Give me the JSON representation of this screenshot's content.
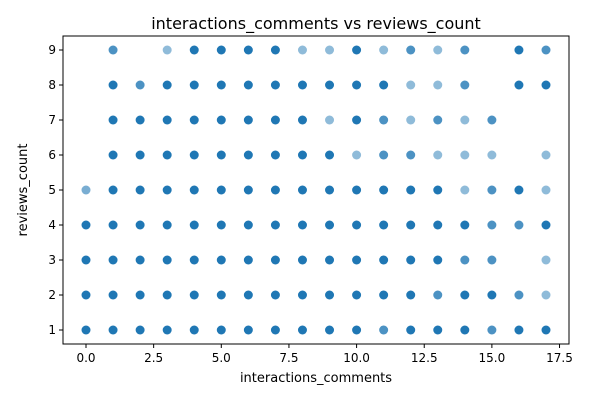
{
  "chart_data": {
    "type": "scatter",
    "title": "interactions_comments vs reviews_count",
    "xlabel": "interactions_comments",
    "ylabel": "reviews_count",
    "xlim": [
      -0.85,
      17.85
    ],
    "ylim": [
      0.6,
      9.4
    ],
    "xticks": [
      0.0,
      2.5,
      5.0,
      7.5,
      10.0,
      12.5,
      15.0,
      17.5
    ],
    "xtick_labels": [
      "0.0",
      "2.5",
      "5.0",
      "7.5",
      "10.0",
      "12.5",
      "15.0",
      "17.5"
    ],
    "yticks": [
      1,
      2,
      3,
      4,
      5,
      6,
      7,
      8,
      9
    ],
    "ytick_labels": [
      "1",
      "2",
      "3",
      "4",
      "5",
      "6",
      "7",
      "8",
      "9"
    ],
    "grid": false,
    "legend": "none",
    "marker_color": "#1f77b4",
    "points": [
      {
        "x": 0,
        "y": 1
      },
      {
        "x": 0,
        "y": 2
      },
      {
        "x": 0,
        "y": 3
      },
      {
        "x": 0,
        "y": 4
      },
      {
        "x": 0,
        "y": 5,
        "a": 0.6
      },
      {
        "x": 1,
        "y": 1
      },
      {
        "x": 1,
        "y": 2
      },
      {
        "x": 1,
        "y": 3
      },
      {
        "x": 1,
        "y": 4
      },
      {
        "x": 1,
        "y": 5
      },
      {
        "x": 1,
        "y": 6
      },
      {
        "x": 1,
        "y": 7
      },
      {
        "x": 1,
        "y": 8
      },
      {
        "x": 1,
        "y": 9,
        "a": 0.8
      },
      {
        "x": 2,
        "y": 1
      },
      {
        "x": 2,
        "y": 2
      },
      {
        "x": 2,
        "y": 3
      },
      {
        "x": 2,
        "y": 4
      },
      {
        "x": 2,
        "y": 5
      },
      {
        "x": 2,
        "y": 6
      },
      {
        "x": 2,
        "y": 7
      },
      {
        "x": 2,
        "y": 8,
        "a": 0.8
      },
      {
        "x": 3,
        "y": 1
      },
      {
        "x": 3,
        "y": 2
      },
      {
        "x": 3,
        "y": 3
      },
      {
        "x": 3,
        "y": 4
      },
      {
        "x": 3,
        "y": 5
      },
      {
        "x": 3,
        "y": 6
      },
      {
        "x": 3,
        "y": 7
      },
      {
        "x": 3,
        "y": 8
      },
      {
        "x": 3,
        "y": 9,
        "a": 0.5
      },
      {
        "x": 4,
        "y": 1
      },
      {
        "x": 4,
        "y": 2
      },
      {
        "x": 4,
        "y": 3
      },
      {
        "x": 4,
        "y": 4
      },
      {
        "x": 4,
        "y": 5
      },
      {
        "x": 4,
        "y": 6
      },
      {
        "x": 4,
        "y": 7
      },
      {
        "x": 4,
        "y": 8
      },
      {
        "x": 4,
        "y": 9
      },
      {
        "x": 5,
        "y": 1
      },
      {
        "x": 5,
        "y": 2
      },
      {
        "x": 5,
        "y": 3
      },
      {
        "x": 5,
        "y": 4
      },
      {
        "x": 5,
        "y": 5
      },
      {
        "x": 5,
        "y": 6
      },
      {
        "x": 5,
        "y": 7
      },
      {
        "x": 5,
        "y": 8
      },
      {
        "x": 5,
        "y": 9
      },
      {
        "x": 6,
        "y": 1
      },
      {
        "x": 6,
        "y": 2
      },
      {
        "x": 6,
        "y": 3
      },
      {
        "x": 6,
        "y": 4
      },
      {
        "x": 6,
        "y": 5
      },
      {
        "x": 6,
        "y": 6
      },
      {
        "x": 6,
        "y": 7
      },
      {
        "x": 6,
        "y": 8
      },
      {
        "x": 6,
        "y": 9
      },
      {
        "x": 7,
        "y": 1
      },
      {
        "x": 7,
        "y": 2
      },
      {
        "x": 7,
        "y": 3
      },
      {
        "x": 7,
        "y": 4
      },
      {
        "x": 7,
        "y": 5
      },
      {
        "x": 7,
        "y": 6
      },
      {
        "x": 7,
        "y": 7
      },
      {
        "x": 7,
        "y": 8
      },
      {
        "x": 7,
        "y": 9
      },
      {
        "x": 8,
        "y": 1
      },
      {
        "x": 8,
        "y": 2
      },
      {
        "x": 8,
        "y": 3
      },
      {
        "x": 8,
        "y": 4
      },
      {
        "x": 8,
        "y": 5
      },
      {
        "x": 8,
        "y": 6
      },
      {
        "x": 8,
        "y": 7
      },
      {
        "x": 8,
        "y": 8
      },
      {
        "x": 8,
        "y": 9,
        "a": 0.5
      },
      {
        "x": 9,
        "y": 1
      },
      {
        "x": 9,
        "y": 2
      },
      {
        "x": 9,
        "y": 3
      },
      {
        "x": 9,
        "y": 4
      },
      {
        "x": 9,
        "y": 5
      },
      {
        "x": 9,
        "y": 6
      },
      {
        "x": 9,
        "y": 7,
        "a": 0.5
      },
      {
        "x": 9,
        "y": 8
      },
      {
        "x": 9,
        "y": 9,
        "a": 0.5
      },
      {
        "x": 10,
        "y": 1
      },
      {
        "x": 10,
        "y": 2
      },
      {
        "x": 10,
        "y": 3
      },
      {
        "x": 10,
        "y": 4
      },
      {
        "x": 10,
        "y": 5
      },
      {
        "x": 10,
        "y": 6,
        "a": 0.5
      },
      {
        "x": 10,
        "y": 7
      },
      {
        "x": 10,
        "y": 8
      },
      {
        "x": 10,
        "y": 9
      },
      {
        "x": 11,
        "y": 1,
        "a": 0.8
      },
      {
        "x": 11,
        "y": 2
      },
      {
        "x": 11,
        "y": 3
      },
      {
        "x": 11,
        "y": 4
      },
      {
        "x": 11,
        "y": 5
      },
      {
        "x": 11,
        "y": 6,
        "a": 0.8
      },
      {
        "x": 11,
        "y": 7,
        "a": 0.8
      },
      {
        "x": 11,
        "y": 8
      },
      {
        "x": 11,
        "y": 9,
        "a": 0.5
      },
      {
        "x": 12,
        "y": 1
      },
      {
        "x": 12,
        "y": 2
      },
      {
        "x": 12,
        "y": 3
      },
      {
        "x": 12,
        "y": 4
      },
      {
        "x": 12,
        "y": 5
      },
      {
        "x": 12,
        "y": 6,
        "a": 0.8
      },
      {
        "x": 12,
        "y": 7,
        "a": 0.5
      },
      {
        "x": 12,
        "y": 8,
        "a": 0.5
      },
      {
        "x": 12,
        "y": 9,
        "a": 0.8
      },
      {
        "x": 13,
        "y": 1
      },
      {
        "x": 13,
        "y": 2,
        "a": 0.8
      },
      {
        "x": 13,
        "y": 3
      },
      {
        "x": 13,
        "y": 4
      },
      {
        "x": 13,
        "y": 5
      },
      {
        "x": 13,
        "y": 6,
        "a": 0.5
      },
      {
        "x": 13,
        "y": 7,
        "a": 0.8
      },
      {
        "x": 13,
        "y": 8,
        "a": 0.5
      },
      {
        "x": 13,
        "y": 9,
        "a": 0.5
      },
      {
        "x": 14,
        "y": 1
      },
      {
        "x": 14,
        "y": 2
      },
      {
        "x": 14,
        "y": 3,
        "a": 0.8
      },
      {
        "x": 14,
        "y": 4
      },
      {
        "x": 14,
        "y": 5,
        "a": 0.5
      },
      {
        "x": 14,
        "y": 6,
        "a": 0.5
      },
      {
        "x": 14,
        "y": 7,
        "a": 0.5
      },
      {
        "x": 14,
        "y": 8,
        "a": 0.8
      },
      {
        "x": 14,
        "y": 9,
        "a": 0.8
      },
      {
        "x": 15,
        "y": 1,
        "a": 0.8
      },
      {
        "x": 15,
        "y": 2
      },
      {
        "x": 15,
        "y": 3,
        "a": 0.8
      },
      {
        "x": 15,
        "y": 4,
        "a": 0.8
      },
      {
        "x": 15,
        "y": 5,
        "a": 0.8
      },
      {
        "x": 15,
        "y": 6,
        "a": 0.5
      },
      {
        "x": 15,
        "y": 7,
        "a": 0.8
      },
      {
        "x": 16,
        "y": 1
      },
      {
        "x": 16,
        "y": 2,
        "a": 0.8
      },
      {
        "x": 16,
        "y": 4,
        "a": 0.8
      },
      {
        "x": 16,
        "y": 5
      },
      {
        "x": 16,
        "y": 8
      },
      {
        "x": 16,
        "y": 9
      },
      {
        "x": 17,
        "y": 1
      },
      {
        "x": 17,
        "y": 2,
        "a": 0.5
      },
      {
        "x": 17,
        "y": 3,
        "a": 0.5
      },
      {
        "x": 17,
        "y": 4
      },
      {
        "x": 17,
        "y": 5,
        "a": 0.5
      },
      {
        "x": 17,
        "y": 6,
        "a": 0.5
      },
      {
        "x": 17,
        "y": 8
      },
      {
        "x": 17,
        "y": 9,
        "a": 0.8
      }
    ]
  }
}
